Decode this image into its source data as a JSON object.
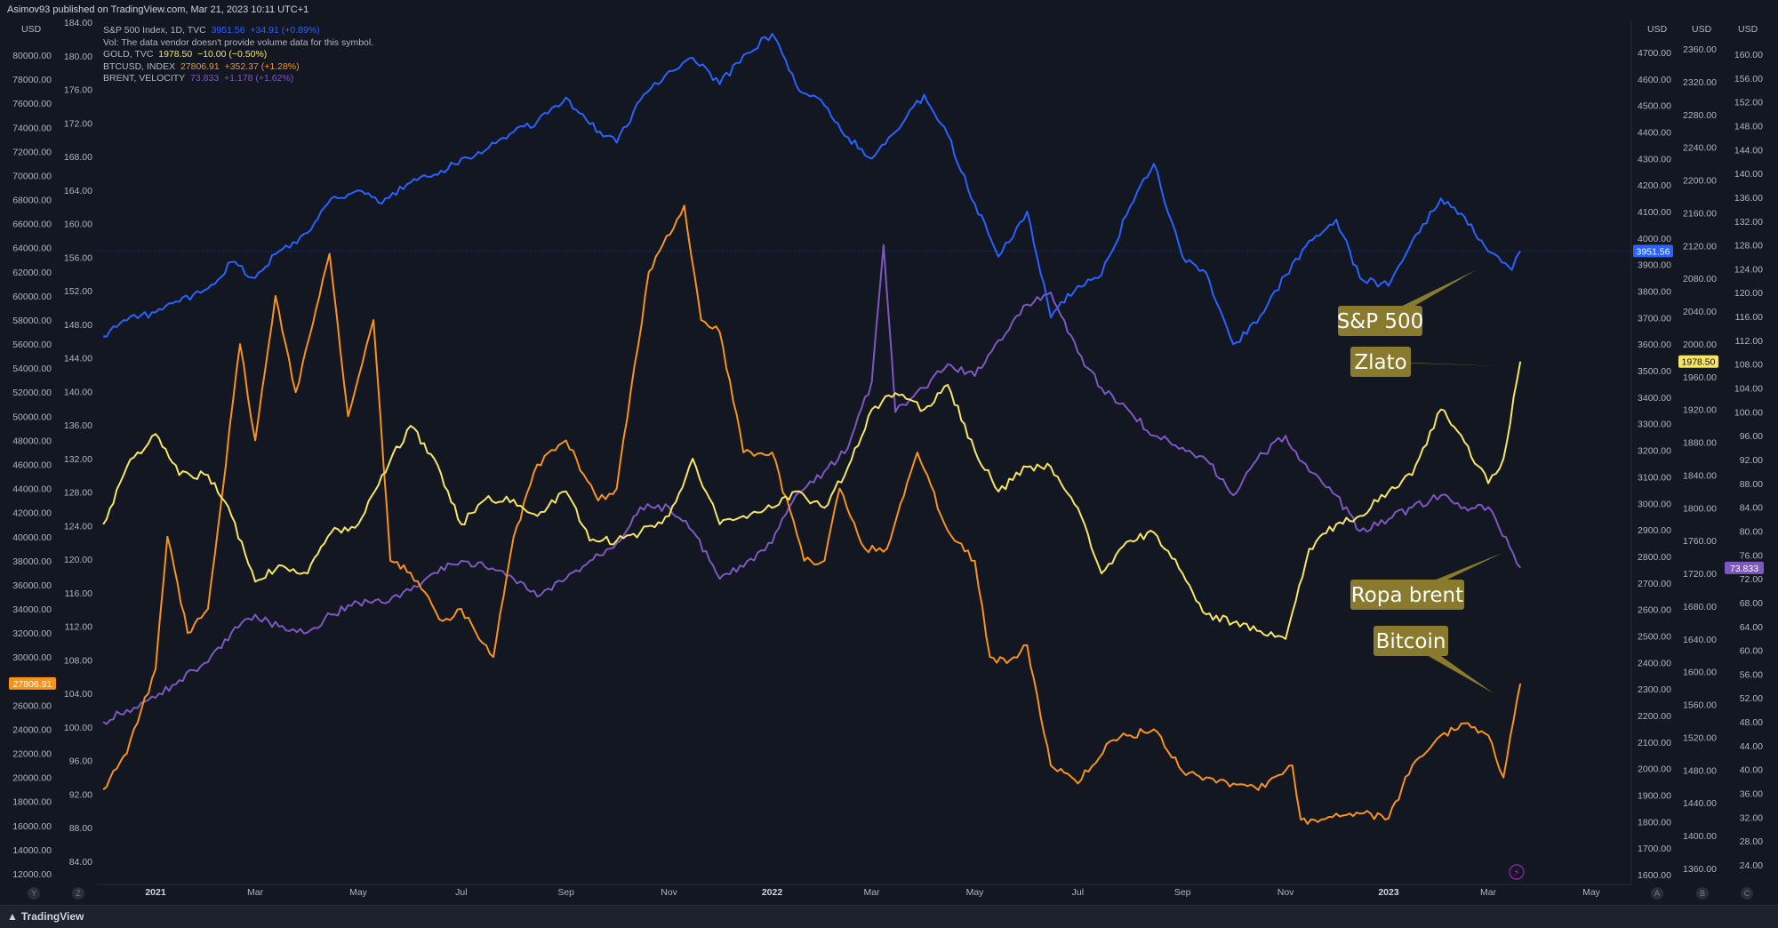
{
  "header": {
    "published": "Asimov93 published on TradingView.com, Mar 21, 2023 10:11 UTC+1"
  },
  "legend": [
    {
      "name": "S&P 500 Index, 1D, TVC",
      "value": "3951.56",
      "change": "+34.91 (+0.89%)",
      "color": "#2962ff"
    },
    {
      "name": "Vol: The data vendor doesn't provide volume data for this symbol.",
      "value": "",
      "change": "",
      "color": "#b2b5be"
    },
    {
      "name": "GOLD, TVC",
      "value": "1978.50",
      "change": "−10.00 (−0.50%)",
      "color": "#f7e463"
    },
    {
      "name": "BTCUSD, INDEX",
      "value": "27806.91",
      "change": "+352.37 (+1.28%)",
      "color": "#f7931a"
    },
    {
      "name": "BRENT, VELOCITY",
      "value": "73.833",
      "change": "+1.178 (+1.62%)",
      "color": "#7e57c2"
    }
  ],
  "footer": {
    "brand": "TradingView"
  },
  "axis_buttons": {
    "left": [
      "Y",
      "Z"
    ],
    "right": [
      "A",
      "B",
      "C"
    ]
  },
  "chart_data": {
    "type": "line",
    "x_ticks": [
      "2021",
      "Mar",
      "May",
      "Jul",
      "Sep",
      "Nov",
      "2022",
      "Mar",
      "May",
      "Jul",
      "Sep",
      "Nov",
      "2023",
      "Mar",
      "May"
    ],
    "axes": {
      "btc_left": {
        "unit": "USD",
        "ticks": [
          80000,
          78000,
          76000,
          74000,
          72000,
          70000,
          68000,
          66000,
          64000,
          62000,
          60000,
          58000,
          56000,
          54000,
          52000,
          50000,
          48000,
          46000,
          44000,
          42000,
          40000,
          38000,
          36000,
          34000,
          32000,
          30000,
          28000,
          26000,
          24000,
          22000,
          20000,
          18000,
          16000,
          14000,
          12000
        ],
        "tick_labels": [
          "80000.00",
          "78000.00",
          "76000.00",
          "74000.00",
          "72000.00",
          "70000.00",
          "68000.00",
          "66000.00",
          "64000.00",
          "62000.00",
          "60000.00",
          "58000.00",
          "56000.00",
          "54000.00",
          "52000.00",
          "50000.00",
          "48000.00",
          "46000.00",
          "44000.00",
          "42000.00",
          "40000.00",
          "38000.00",
          "36000.00",
          "34000.00",
          "32000.00",
          "30000.00",
          "28000.00",
          "26000.00",
          "24000.00",
          "22000.00",
          "20000.00",
          "18000.00",
          "16000.00",
          "14000.00",
          "12000.00"
        ]
      },
      "unlabeled_left": {
        "ticks": [
          184,
          180,
          176,
          172,
          168,
          164,
          160,
          156,
          152,
          148,
          144,
          140,
          136,
          132,
          128,
          124,
          120,
          116,
          112,
          108,
          104,
          100,
          96,
          92,
          88,
          84
        ],
        "tick_labels": [
          "184.00",
          "180.00",
          "176.00",
          "172.00",
          "168.00",
          "164.00",
          "160.00",
          "156.00",
          "152.00",
          "148.00",
          "144.00",
          "140.00",
          "136.00",
          "132.00",
          "128.00",
          "124.00",
          "120.00",
          "116.00",
          "112.00",
          "108.00",
          "104.00",
          "100.00",
          "96.00",
          "92.00",
          "88.00",
          "84.00"
        ]
      },
      "spx_right": {
        "unit": "USD",
        "ticks": [
          4700,
          4600,
          4500,
          4400,
          4300,
          4200,
          4100,
          4000,
          3900,
          3800,
          3700,
          3600,
          3500,
          3400,
          3300,
          3200,
          3100,
          3000,
          2900,
          2800,
          2700,
          2600,
          2500,
          2400,
          2300,
          2200,
          2100,
          2000,
          1900,
          1800,
          1700,
          1600
        ],
        "tick_labels": [
          "4700.00",
          "4600.00",
          "4500.00",
          "4400.00",
          "4300.00",
          "4200.00",
          "4100.00",
          "4000.00",
          "3900.00",
          "3800.00",
          "3700.00",
          "3600.00",
          "3500.00",
          "3400.00",
          "3300.00",
          "3200.00",
          "3100.00",
          "3000.00",
          "2900.00",
          "2800.00",
          "2700.00",
          "2600.00",
          "2500.00",
          "2400.00",
          "2300.00",
          "2200.00",
          "2100.00",
          "2000.00",
          "1900.00",
          "1800.00",
          "1700.00",
          "1600.00"
        ]
      },
      "gold_right": {
        "unit": "USD",
        "ticks": [
          2360,
          2320,
          2280,
          2240,
          2200,
          2160,
          2120,
          2080,
          2040,
          2000,
          1960,
          1920,
          1880,
          1840,
          1800,
          1760,
          1720,
          1680,
          1640,
          1600,
          1560,
          1520,
          1480,
          1440,
          1400,
          1360
        ],
        "tick_labels": [
          "2360.00",
          "2320.00",
          "2280.00",
          "2240.00",
          "2200.00",
          "2160.00",
          "2120.00",
          "2080.00",
          "2040.00",
          "2000.00",
          "1960.00",
          "1920.00",
          "1880.00",
          "1840.00",
          "1800.00",
          "1760.00",
          "1720.00",
          "1680.00",
          "1640.00",
          "1600.00",
          "1560.00",
          "1520.00",
          "1480.00",
          "1440.00",
          "1400.00",
          "1360.00"
        ]
      },
      "brent_right": {
        "unit": "USD",
        "ticks": [
          160,
          156,
          152,
          148,
          144,
          140,
          136,
          132,
          128,
          124,
          120,
          116,
          112,
          108,
          104,
          100,
          96,
          92,
          88,
          84,
          80,
          76,
          72,
          68,
          64,
          60,
          56,
          52,
          48,
          44,
          40,
          36,
          32,
          28,
          24
        ],
        "tick_labels": [
          "160.00",
          "156.00",
          "152.00",
          "148.00",
          "144.00",
          "140.00",
          "136.00",
          "132.00",
          "128.00",
          "124.00",
          "120.00",
          "116.00",
          "112.00",
          "108.00",
          "104.00",
          "100.00",
          "96.00",
          "92.00",
          "88.00",
          "84.00",
          "80.00",
          "76.00",
          "72.00",
          "68.00",
          "64.00",
          "60.00",
          "56.00",
          "52.00",
          "48.00",
          "44.00",
          "40.00",
          "36.00",
          "32.00",
          "28.00",
          "24.00"
        ]
      }
    },
    "series": [
      {
        "key": "spx",
        "axis": "spx_right",
        "color": "#2962ff",
        "x": [
          "2020-12-01",
          "2020-12-15",
          "2021-01-01",
          "2021-01-15",
          "2021-02-01",
          "2021-02-15",
          "2021-03-01",
          "2021-03-15",
          "2021-04-01",
          "2021-04-15",
          "2021-05-01",
          "2021-05-15",
          "2021-06-01",
          "2021-06-15",
          "2021-07-01",
          "2021-07-15",
          "2021-08-01",
          "2021-08-15",
          "2021-09-01",
          "2021-09-15",
          "2021-10-01",
          "2021-10-15",
          "2021-11-01",
          "2021-11-15",
          "2021-12-01",
          "2021-12-15",
          "2022-01-01",
          "2022-01-15",
          "2022-02-01",
          "2022-02-15",
          "2022-03-01",
          "2022-03-15",
          "2022-04-01",
          "2022-04-15",
          "2022-05-01",
          "2022-05-15",
          "2022-06-01",
          "2022-06-15",
          "2022-07-01",
          "2022-07-15",
          "2022-08-01",
          "2022-08-15",
          "2022-09-01",
          "2022-09-15",
          "2022-10-01",
          "2022-10-15",
          "2022-11-01",
          "2022-11-15",
          "2022-12-01",
          "2022-12-15",
          "2023-01-01",
          "2023-01-15",
          "2023-02-01",
          "2023-02-15",
          "2023-03-01",
          "2023-03-15",
          "2023-03-20"
        ],
        "y": [
          3630,
          3690,
          3720,
          3760,
          3810,
          3910,
          3850,
          3950,
          4020,
          4150,
          4180,
          4130,
          4210,
          4240,
          4300,
          4330,
          4400,
          4440,
          4530,
          4430,
          4360,
          4520,
          4630,
          4680,
          4580,
          4690,
          4770,
          4580,
          4500,
          4380,
          4300,
          4400,
          4540,
          4390,
          4130,
          3930,
          4100,
          3700,
          3820,
          3860,
          4120,
          4280,
          3930,
          3870,
          3600,
          3680,
          3860,
          3990,
          4070,
          3850,
          3820,
          3990,
          4150,
          4080,
          3950,
          3880,
          3951.56
        ]
      },
      {
        "key": "gold",
        "axis": "gold_right",
        "color": "#f7e463",
        "x": [
          "2020-12-01",
          "2020-12-15",
          "2021-01-01",
          "2021-01-15",
          "2021-02-01",
          "2021-02-15",
          "2021-03-01",
          "2021-03-15",
          "2021-04-01",
          "2021-04-15",
          "2021-05-01",
          "2021-05-15",
          "2021-06-01",
          "2021-06-15",
          "2021-07-01",
          "2021-07-15",
          "2021-08-01",
          "2021-08-15",
          "2021-09-01",
          "2021-09-15",
          "2021-10-01",
          "2021-10-15",
          "2021-11-01",
          "2021-11-15",
          "2021-12-01",
          "2021-12-15",
          "2022-01-01",
          "2022-01-15",
          "2022-02-01",
          "2022-02-15",
          "2022-03-01",
          "2022-03-15",
          "2022-04-01",
          "2022-04-15",
          "2022-05-01",
          "2022-05-15",
          "2022-06-01",
          "2022-06-15",
          "2022-07-01",
          "2022-07-15",
          "2022-08-01",
          "2022-08-15",
          "2022-09-01",
          "2022-09-15",
          "2022-10-01",
          "2022-10-15",
          "2022-11-01",
          "2022-11-15",
          "2022-12-01",
          "2022-12-15",
          "2023-01-01",
          "2023-01-15",
          "2023-02-01",
          "2023-02-15",
          "2023-03-01",
          "2023-03-10",
          "2023-03-20"
        ],
        "y": [
          1780,
          1850,
          1890,
          1840,
          1840,
          1790,
          1710,
          1730,
          1720,
          1770,
          1780,
          1840,
          1900,
          1860,
          1780,
          1810,
          1810,
          1790,
          1820,
          1760,
          1760,
          1770,
          1790,
          1860,
          1780,
          1790,
          1800,
          1820,
          1800,
          1850,
          1920,
          1940,
          1920,
          1950,
          1870,
          1820,
          1850,
          1850,
          1800,
          1720,
          1760,
          1770,
          1720,
          1670,
          1660,
          1650,
          1640,
          1750,
          1780,
          1790,
          1820,
          1840,
          1920,
          1880,
          1830,
          1860,
          1978.5
        ]
      },
      {
        "key": "btc",
        "axis": "btc_left",
        "color": "#f7931a",
        "x": [
          "2020-12-01",
          "2020-12-15",
          "2021-01-01",
          "2021-01-08",
          "2021-01-20",
          "2021-02-01",
          "2021-02-20",
          "2021-03-01",
          "2021-03-13",
          "2021-03-25",
          "2021-04-14",
          "2021-04-25",
          "2021-05-10",
          "2021-05-20",
          "2021-06-01",
          "2021-06-20",
          "2021-07-01",
          "2021-07-20",
          "2021-08-01",
          "2021-08-15",
          "2021-09-01",
          "2021-09-20",
          "2021-10-01",
          "2021-10-20",
          "2021-11-10",
          "2021-11-20",
          "2021-12-01",
          "2021-12-15",
          "2022-01-01",
          "2022-01-20",
          "2022-02-01",
          "2022-02-10",
          "2022-02-25",
          "2022-03-10",
          "2022-03-28",
          "2022-04-15",
          "2022-05-01",
          "2022-05-10",
          "2022-05-20",
          "2022-06-01",
          "2022-06-15",
          "2022-07-01",
          "2022-07-20",
          "2022-08-01",
          "2022-08-15",
          "2022-09-01",
          "2022-09-15",
          "2022-10-01",
          "2022-10-20",
          "2022-11-05",
          "2022-11-10",
          "2022-11-20",
          "2022-12-01",
          "2022-12-15",
          "2023-01-01",
          "2023-01-15",
          "2023-02-01",
          "2023-02-15",
          "2023-03-01",
          "2023-03-10",
          "2023-03-20"
        ],
        "y": [
          19000,
          22000,
          29000,
          40000,
          32000,
          34000,
          56000,
          48000,
          60000,
          52000,
          63500,
          50000,
          58000,
          38000,
          37000,
          33000,
          34000,
          30000,
          40000,
          46000,
          48000,
          43000,
          44000,
          62000,
          67500,
          58000,
          57000,
          47000,
          47000,
          38000,
          38000,
          44000,
          39000,
          39000,
          47000,
          40500,
          38000,
          30000,
          29500,
          31000,
          21000,
          19500,
          23000,
          23500,
          24000,
          20500,
          20000,
          19500,
          19200,
          21000,
          16500,
          16300,
          17000,
          17000,
          16600,
          21000,
          23500,
          24500,
          23500,
          20000,
          27806.91
        ]
      },
      {
        "key": "brent",
        "axis": "brent_right",
        "color": "#7e57c2",
        "x": [
          "2020-12-01",
          "2020-12-15",
          "2021-01-01",
          "2021-01-15",
          "2021-02-01",
          "2021-02-15",
          "2021-03-01",
          "2021-03-15",
          "2021-04-01",
          "2021-04-15",
          "2021-05-01",
          "2021-05-15",
          "2021-06-01",
          "2021-06-15",
          "2021-07-01",
          "2021-07-15",
          "2021-08-01",
          "2021-08-15",
          "2021-09-01",
          "2021-09-15",
          "2021-10-01",
          "2021-10-15",
          "2021-11-01",
          "2021-11-15",
          "2021-12-01",
          "2021-12-15",
          "2022-01-01",
          "2022-01-15",
          "2022-02-01",
          "2022-02-15",
          "2022-03-01",
          "2022-03-08",
          "2022-03-15",
          "2022-04-01",
          "2022-04-15",
          "2022-05-01",
          "2022-05-15",
          "2022-06-01",
          "2022-06-15",
          "2022-07-01",
          "2022-07-15",
          "2022-08-01",
          "2022-08-15",
          "2022-09-01",
          "2022-09-15",
          "2022-10-01",
          "2022-10-15",
          "2022-11-01",
          "2022-11-15",
          "2022-12-01",
          "2022-12-15",
          "2023-01-01",
          "2023-01-15",
          "2023-02-01",
          "2023-02-15",
          "2023-03-01",
          "2023-03-20"
        ],
        "y": [
          48,
          50,
          52,
          55,
          58,
          63,
          66,
          64,
          63,
          66,
          68,
          68,
          70,
          73,
          75,
          74,
          72,
          69,
          72,
          75,
          78,
          84,
          84,
          80,
          72,
          74,
          78,
          86,
          90,
          94,
          105,
          128,
          100,
          104,
          108,
          106,
          112,
          118,
          120,
          110,
          104,
          100,
          96,
          94,
          92,
          86,
          92,
          96,
          90,
          86,
          80,
          82,
          84,
          86,
          84,
          84,
          73.833
        ]
      }
    ],
    "price_tags": [
      {
        "series": "spx",
        "label": "3951.56"
      },
      {
        "series": "gold",
        "label": "1978.50"
      },
      {
        "series": "btc",
        "label": "27806.91"
      },
      {
        "series": "brent",
        "label": "73.833"
      }
    ],
    "annotations": [
      {
        "text": "S&P 500",
        "series": "spx"
      },
      {
        "text": "Zlato",
        "series": "gold"
      },
      {
        "text": "Ropa brent",
        "series": "brent"
      },
      {
        "text": "Bitcoin",
        "series": "btc"
      }
    ]
  }
}
